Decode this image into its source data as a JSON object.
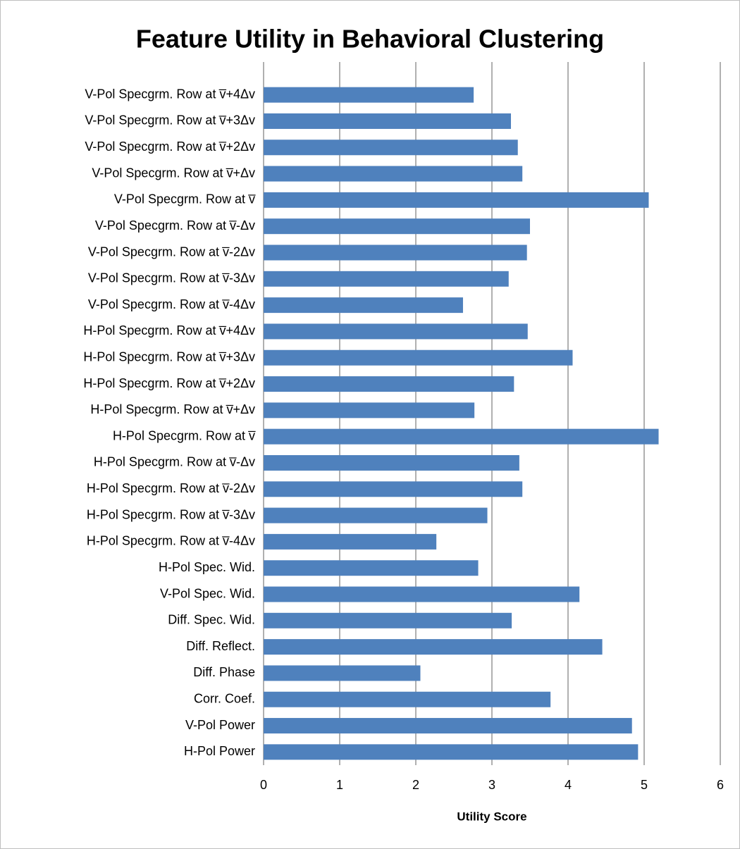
{
  "chart_data": {
    "type": "barh",
    "title": "Feature Utility in Behavioral Clustering",
    "xlabel": "Utility Score",
    "categories": [
      "V-Pol Specgrm. Row at v̅+4Δv",
      "V-Pol Specgrm. Row at v̅+3Δv",
      "V-Pol Specgrm. Row at v̅+2Δv",
      "V-Pol Specgrm. Row at v̅+Δv",
      "V-Pol Specgrm. Row at v̅",
      "V-Pol Specgrm. Row at v̅-Δv",
      "V-Pol Specgrm. Row at v̅-2Δv",
      "V-Pol Specgrm. Row at v̅-3Δv",
      "V-Pol Specgrm. Row at v̅-4Δv",
      "H-Pol Specgrm. Row at v̅+4Δv",
      "H-Pol Specgrm. Row at v̅+3Δv",
      "H-Pol Specgrm. Row at v̅+2Δv",
      "H-Pol Specgrm. Row at v̅+Δv",
      "H-Pol Specgrm. Row at v̅",
      "H-Pol Specgrm. Row at v̅-Δv",
      "H-Pol Specgrm. Row at v̅-2Δv",
      "H-Pol Specgrm. Row at v̅-3Δv",
      "H-Pol Specgrm. Row at v̅-4Δv",
      "H-Pol Spec. Wid.",
      "V-Pol Spec. Wid.",
      "Diff. Spec. Wid.",
      "Diff. Reflect.",
      "Diff. Phase",
      "Corr. Coef.",
      "V-Pol Power",
      "H-Pol Power"
    ],
    "values": [
      2.76,
      3.25,
      3.34,
      3.4,
      5.06,
      3.5,
      3.46,
      3.22,
      2.62,
      3.47,
      4.06,
      3.29,
      2.77,
      5.19,
      3.36,
      3.4,
      2.94,
      2.27,
      2.82,
      4.15,
      3.26,
      4.45,
      2.06,
      3.77,
      4.84,
      4.92
    ],
    "color": "#4f81bd",
    "xlim": [
      0,
      6
    ],
    "xticks": [
      0,
      1,
      2,
      3,
      4,
      5,
      6
    ],
    "grid": true
  }
}
